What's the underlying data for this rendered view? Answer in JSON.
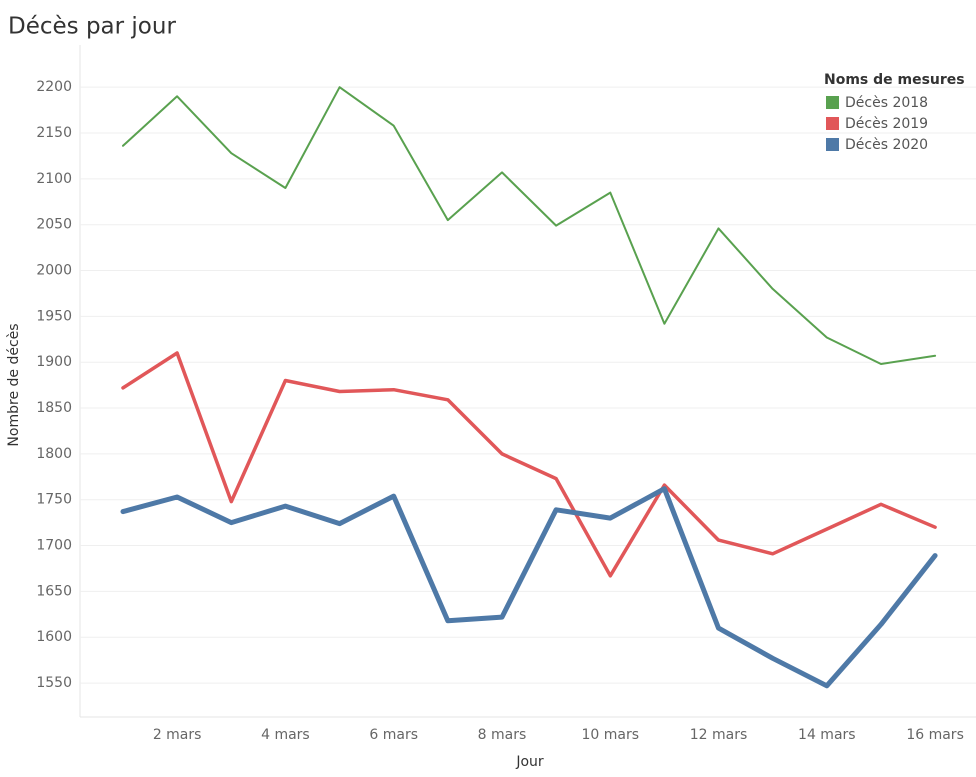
{
  "chart_data": {
    "type": "line",
    "title": "Décès par jour",
    "x_label": "Jour",
    "y_label": "Nombre de décès",
    "categories": [
      null,
      "2 mars",
      null,
      "4 mars",
      null,
      "6 mars",
      null,
      "8 mars",
      null,
      "10 mars",
      null,
      "12 mars",
      null,
      "14 mars",
      null,
      "16 mars"
    ],
    "series": [
      {
        "name": "Décès 2018",
        "color": "#59a14f",
        "values": [
          2136,
          2190,
          2128,
          2090,
          2200,
          2158,
          2055,
          2107,
          2049,
          2085,
          1942,
          2046,
          1980,
          1927,
          1898,
          1907
        ]
      },
      {
        "name": "Décès 2019",
        "color": "#e15759",
        "values": [
          1872,
          1910,
          1748,
          1880,
          1868,
          1870,
          1859,
          1800,
          1773,
          1667,
          1766,
          1706,
          1691,
          1718,
          1745,
          1720
        ]
      },
      {
        "name": "Décès 2020",
        "color": "#4e79a7",
        "values": [
          1737,
          1753,
          1725,
          1743,
          1724,
          1754,
          1618,
          1622,
          1739,
          1730,
          1762,
          1610,
          1577,
          1547,
          1614,
          1689
        ]
      }
    ],
    "legend_title": "Noms de mesures",
    "legend": "top-right",
    "ylim": [
      1513,
      2246
    ],
    "yticks": [
      1550,
      1600,
      1650,
      1700,
      1750,
      1800,
      1850,
      1900,
      1950,
      2000,
      2050,
      2100,
      2150,
      2200
    ],
    "grid": true
  }
}
